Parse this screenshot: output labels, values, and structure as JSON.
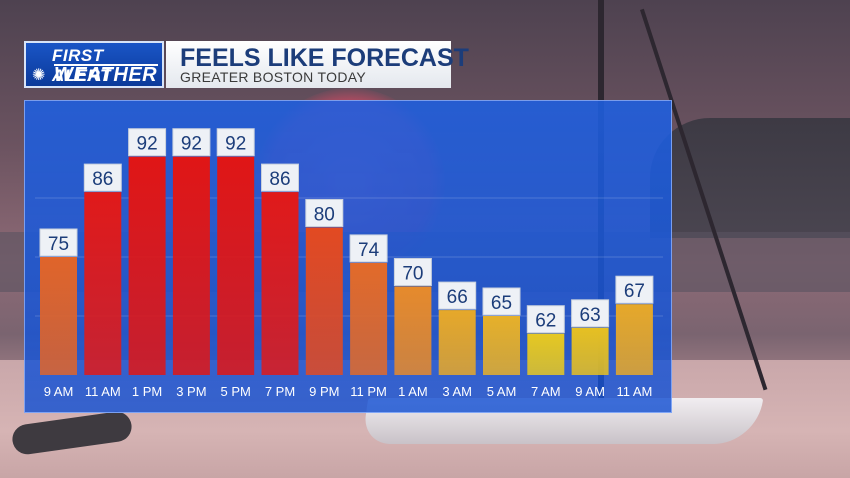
{
  "header": {
    "logo_line1": "FIRST ALERT",
    "logo_line2": "WEATHER",
    "title": "FEELS LIKE FORECAST",
    "subtitle": "GREATER BOSTON TODAY"
  },
  "chart_data": {
    "type": "bar",
    "title": "FEELS LIKE FORECAST",
    "subtitle": "GREATER BOSTON TODAY",
    "categories": [
      "9 AM",
      "11 AM",
      "1 PM",
      "3 PM",
      "5 PM",
      "7 PM",
      "9 PM",
      "11 PM",
      "1 AM",
      "3 AM",
      "5 AM",
      "7 AM",
      "9 AM",
      "11 AM"
    ],
    "values": [
      75,
      86,
      92,
      92,
      92,
      86,
      80,
      74,
      70,
      66,
      65,
      62,
      63,
      67
    ],
    "ylim": [
      55,
      95
    ],
    "grid": true,
    "bar_colors": [
      "#e0642a",
      "#e01a1a",
      "#e01616",
      "#e01616",
      "#e01616",
      "#e01a1a",
      "#e24a22",
      "#e26a2a",
      "#e68a2c",
      "#e6a82a",
      "#e6b02a",
      "#e6c822",
      "#e6c022",
      "#e6a82a"
    ]
  }
}
